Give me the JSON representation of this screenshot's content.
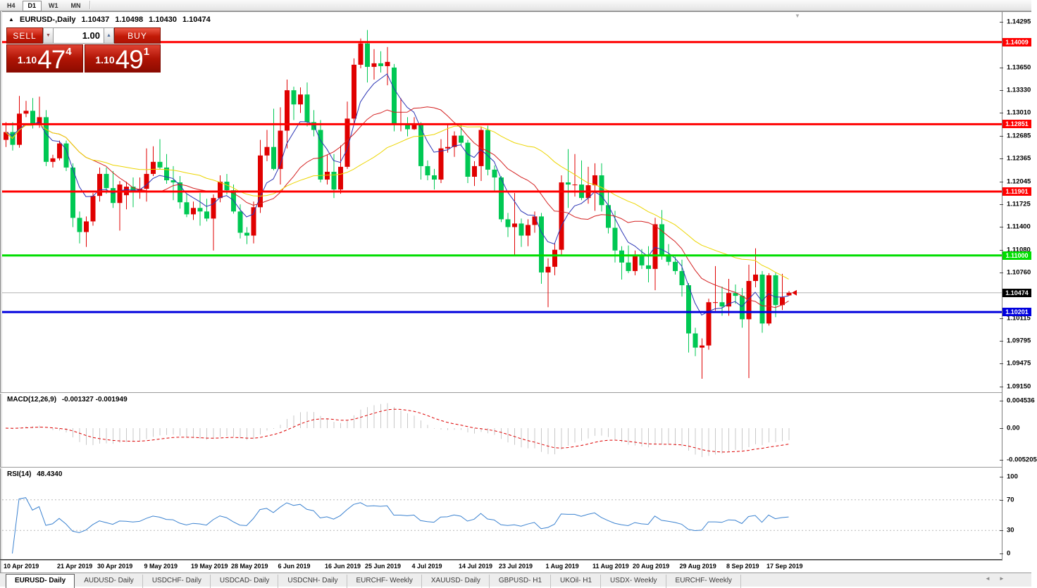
{
  "toolbar": {
    "timeframes": [
      "H4",
      "D1",
      "W1",
      "MN"
    ],
    "active": "D1"
  },
  "chart_header": {
    "collapse_icon": "▲",
    "symbol": "EURUSD-,Daily",
    "open": "1.10437",
    "high": "1.10498",
    "low": "1.10430",
    "close": "1.10474"
  },
  "trade_panel": {
    "sell_label": "SELL",
    "buy_label": "BUY",
    "volume": "1.00",
    "spin_down_icon": "▼",
    "spin_up_icon": "▲",
    "sell_price": {
      "small": "1.10",
      "big": "47",
      "sup": "4"
    },
    "buy_price": {
      "small": "1.10",
      "big": "49",
      "sup": "1"
    }
  },
  "indicator_labels": {
    "macd_name": "MACD(12,26,9)",
    "macd_values": "-0.001327 -0.001949",
    "rsi_name": "RSI(14)",
    "rsi_value": "48.4340"
  },
  "misc": {
    "scroll_marker_icon": "▼"
  },
  "footer": {
    "tabs": [
      {
        "label": "EURUSD- Daily",
        "active": true
      },
      {
        "label": "AUDUSD- Daily",
        "active": false
      },
      {
        "label": "USDCHF- Daily",
        "active": false
      },
      {
        "label": "USDCAD- Daily",
        "active": false
      },
      {
        "label": "USDCNH- Daily",
        "active": false
      },
      {
        "label": "EURCHF- Weekly",
        "active": false
      },
      {
        "label": "XAUUSD- Daily",
        "active": false
      },
      {
        "label": "GBPUSD- H1",
        "active": false
      },
      {
        "label": "UKOil- H1",
        "active": false
      },
      {
        "label": "USDX- Weekly",
        "active": false
      },
      {
        "label": "EURCHF- Weekly",
        "active": false
      }
    ],
    "scroll_left_icon": "◄",
    "scroll_right_icon": "►"
  },
  "chart_data": {
    "type": "candlestick",
    "symbol": "EURUSD-",
    "timeframe": "Daily",
    "title": "EURUSD-,Daily 1.10437 1.10498 1.10430 1.10474",
    "price_axis": {
      "top_price": 1.14295,
      "bottom_price": 1.0915,
      "ticks": [
        "1.14295",
        "1.13650",
        "1.13330",
        "1.13010",
        "1.12685",
        "1.12365",
        "1.12045",
        "1.11725",
        "1.11400",
        "1.11080",
        "1.10760",
        "1.10115",
        "1.09795",
        "1.09475",
        "1.09150"
      ]
    },
    "levels": [
      {
        "price": 1.14009,
        "label": "1.14009",
        "color": "#ff0000"
      },
      {
        "price": 1.12851,
        "label": "1.12851",
        "color": "#ff0000"
      },
      {
        "price": 1.11901,
        "label": "1.11901",
        "color": "#ff0000"
      },
      {
        "price": 1.11,
        "label": "1.11000",
        "color": "#00dd00"
      },
      {
        "price": 1.10201,
        "label": "1.10201",
        "color": "#0000dd"
      }
    ],
    "current_price": {
      "value": 1.10474,
      "label": "1.10474",
      "badge_color": "#000000",
      "line_color": "#b4b4b4",
      "marker_color": "#e00000"
    },
    "colors": {
      "up": "#e00000",
      "down": "#00c853",
      "ma_fast": "#2b35b5",
      "ma_mid": "#d42020",
      "ma_slow": "#ecd500"
    },
    "moving_averages": [
      {
        "type": "ema",
        "period": 6,
        "color_key": "ma_fast"
      },
      {
        "type": "sma",
        "period": 14,
        "color_key": "ma_mid"
      },
      {
        "type": "sma",
        "period": 30,
        "color_key": "ma_slow"
      }
    ],
    "date_ticks": [
      {
        "label": "10 Apr 2019",
        "index": 0
      },
      {
        "label": "21 Apr 2019",
        "index": 8
      },
      {
        "label": "30 Apr 2019",
        "index": 14
      },
      {
        "label": "9 May 2019",
        "index": 21
      },
      {
        "label": "19 May 2019",
        "index": 28
      },
      {
        "label": "28 May 2019",
        "index": 34
      },
      {
        "label": "6 Jun 2019",
        "index": 41
      },
      {
        "label": "16 Jun 2019",
        "index": 48
      },
      {
        "label": "25 Jun 2019",
        "index": 54
      },
      {
        "label": "4 Jul 2019",
        "index": 61
      },
      {
        "label": "14 Jul 2019",
        "index": 68
      },
      {
        "label": "23 Jul 2019",
        "index": 74
      },
      {
        "label": "1 Aug 2019",
        "index": 81
      },
      {
        "label": "11 Aug 2019",
        "index": 88
      },
      {
        "label": "20 Aug 2019",
        "index": 94
      },
      {
        "label": "29 Aug 2019",
        "index": 101
      },
      {
        "label": "8 Sep 2019",
        "index": 108
      },
      {
        "label": "17 Sep 2019",
        "index": 114
      }
    ],
    "candles": [
      [
        1.1263,
        1.1288,
        1.1253,
        1.1274
      ],
      [
        1.1274,
        1.1288,
        1.1248,
        1.1256
      ],
      [
        1.1256,
        1.1325,
        1.1252,
        1.13
      ],
      [
        1.13,
        1.1318,
        1.1295,
        1.1304
      ],
      [
        1.1304,
        1.1322,
        1.1279,
        1.1285
      ],
      [
        1.1285,
        1.1324,
        1.128,
        1.1295
      ],
      [
        1.1295,
        1.1305,
        1.1226,
        1.1232
      ],
      [
        1.1232,
        1.1242,
        1.1224,
        1.1237
      ],
      [
        1.1237,
        1.1262,
        1.1234,
        1.1258
      ],
      [
        1.1258,
        1.1262,
        1.1219,
        1.1224
      ],
      [
        1.1224,
        1.123,
        1.114,
        1.1153
      ],
      [
        1.1153,
        1.1162,
        1.1117,
        1.1133
      ],
      [
        1.1133,
        1.1155,
        1.1112,
        1.1148
      ],
      [
        1.1148,
        1.1188,
        1.1142,
        1.1184
      ],
      [
        1.1184,
        1.1224,
        1.1176,
        1.1215
      ],
      [
        1.1215,
        1.1224,
        1.1187,
        1.1195
      ],
      [
        1.1195,
        1.1219,
        1.1167,
        1.1174
      ],
      [
        1.1174,
        1.1205,
        1.1135,
        1.12
      ],
      [
        1.1185,
        1.1204,
        1.1165,
        1.1197
      ],
      [
        1.1197,
        1.121,
        1.1168,
        1.119
      ],
      [
        1.119,
        1.121,
        1.118,
        1.1194
      ],
      [
        1.1194,
        1.1251,
        1.1176,
        1.1215
      ],
      [
        1.1215,
        1.1254,
        1.1212,
        1.1232
      ],
      [
        1.1232,
        1.1264,
        1.1222,
        1.1224
      ],
      [
        1.1224,
        1.1243,
        1.1201,
        1.1206
      ],
      [
        1.1206,
        1.1226,
        1.1178,
        1.1203
      ],
      [
        1.1203,
        1.1212,
        1.1166,
        1.1175
      ],
      [
        1.1175,
        1.1187,
        1.1154,
        1.1158
      ],
      [
        1.1158,
        1.1176,
        1.115,
        1.1167
      ],
      [
        1.1167,
        1.1188,
        1.1142,
        1.1162
      ],
      [
        1.1162,
        1.118,
        1.1148,
        1.1152
      ],
      [
        1.1152,
        1.1186,
        1.1107,
        1.1181
      ],
      [
        1.1181,
        1.1213,
        1.1175,
        1.1204
      ],
      [
        1.1204,
        1.1215,
        1.1186,
        1.1192
      ],
      [
        1.1192,
        1.12,
        1.1159,
        1.1162
      ],
      [
        1.1162,
        1.1172,
        1.1124,
        1.1132
      ],
      [
        1.1132,
        1.114,
        1.1116,
        1.1128
      ],
      [
        1.1128,
        1.1176,
        1.1117,
        1.1168
      ],
      [
        1.1168,
        1.1263,
        1.116,
        1.1241
      ],
      [
        1.1241,
        1.1277,
        1.1233,
        1.1253
      ],
      [
        1.1253,
        1.1307,
        1.122,
        1.1222
      ],
      [
        1.1222,
        1.1309,
        1.12,
        1.1276
      ],
      [
        1.1276,
        1.1348,
        1.1251,
        1.1333
      ],
      [
        1.1333,
        1.1338,
        1.1291,
        1.1313
      ],
      [
        1.1313,
        1.1337,
        1.1301,
        1.1327
      ],
      [
        1.1327,
        1.1344,
        1.1282,
        1.1288
      ],
      [
        1.1288,
        1.1305,
        1.1268,
        1.1277
      ],
      [
        1.1277,
        1.1291,
        1.1203,
        1.1207
      ],
      [
        1.1207,
        1.1242,
        1.12,
        1.1218
      ],
      [
        1.1218,
        1.1243,
        1.1181,
        1.1193
      ],
      [
        1.1193,
        1.1255,
        1.1187,
        1.1225
      ],
      [
        1.1225,
        1.1317,
        1.1222,
        1.1293
      ],
      [
        1.1293,
        1.1378,
        1.1285,
        1.1369
      ],
      [
        1.1369,
        1.1406,
        1.1364,
        1.1399
      ],
      [
        1.1399,
        1.1418,
        1.1344,
        1.1366
      ],
      [
        1.1366,
        1.1391,
        1.1348,
        1.1371
      ],
      [
        1.1371,
        1.1388,
        1.1358,
        1.1367
      ],
      [
        1.1367,
        1.1394,
        1.134,
        1.1373
      ],
      [
        1.1365,
        1.137,
        1.1275,
        1.1285
      ],
      [
        1.1285,
        1.1322,
        1.1275,
        1.1285
      ],
      [
        1.1285,
        1.1295,
        1.1268,
        1.1278
      ],
      [
        1.1278,
        1.1295,
        1.1277,
        1.1285
      ],
      [
        1.1285,
        1.1288,
        1.1207,
        1.1226
      ],
      [
        1.1226,
        1.1234,
        1.1206,
        1.1213
      ],
      [
        1.1213,
        1.1222,
        1.1193,
        1.1207
      ],
      [
        1.1207,
        1.1264,
        1.1202,
        1.1251
      ],
      [
        1.1251,
        1.1286,
        1.1245,
        1.1253
      ],
      [
        1.1253,
        1.1275,
        1.1239,
        1.1269
      ],
      [
        1.1269,
        1.1285,
        1.1255,
        1.1259
      ],
      [
        1.1259,
        1.1263,
        1.1202,
        1.1211
      ],
      [
        1.1211,
        1.1233,
        1.1198,
        1.1226
      ],
      [
        1.1226,
        1.1282,
        1.1205,
        1.1277
      ],
      [
        1.1277,
        1.1283,
        1.1213,
        1.1221
      ],
      [
        1.1221,
        1.1227,
        1.1191,
        1.121
      ],
      [
        1.121,
        1.1212,
        1.1147,
        1.1151
      ],
      [
        1.1151,
        1.116,
        1.1126,
        1.114
      ],
      [
        1.114,
        1.1188,
        1.1101,
        1.1145
      ],
      [
        1.1145,
        1.1152,
        1.1112,
        1.1128
      ],
      [
        1.1128,
        1.1151,
        1.1113,
        1.1143
      ],
      [
        1.1143,
        1.1162,
        1.1132,
        1.1155
      ],
      [
        1.1155,
        1.116,
        1.106,
        1.1076
      ],
      [
        1.1076,
        1.1096,
        1.1027,
        1.1084
      ],
      [
        1.1084,
        1.1117,
        1.1072,
        1.1108
      ],
      [
        1.1108,
        1.1213,
        1.1101,
        1.1203
      ],
      [
        1.1203,
        1.125,
        1.1167,
        1.12
      ],
      [
        1.12,
        1.1243,
        1.1183,
        1.12
      ],
      [
        1.12,
        1.1234,
        1.1178,
        1.1181
      ],
      [
        1.1181,
        1.1225,
        1.1173,
        1.1199
      ],
      [
        1.1199,
        1.123,
        1.1163,
        1.1213
      ],
      [
        1.1213,
        1.123,
        1.1162,
        1.1171
      ],
      [
        1.1171,
        1.1192,
        1.1131,
        1.1139
      ],
      [
        1.1139,
        1.1163,
        1.109,
        1.1107
      ],
      [
        1.1107,
        1.1113,
        1.1066,
        1.109
      ],
      [
        1.109,
        1.1114,
        1.1075,
        1.1078
      ],
      [
        1.1078,
        1.1107,
        1.1072,
        1.11
      ],
      [
        1.11,
        1.1109,
        1.1081,
        1.1086
      ],
      [
        1.1086,
        1.1113,
        1.1062,
        1.1081
      ],
      [
        1.1081,
        1.1153,
        1.1051,
        1.1144
      ],
      [
        1.1144,
        1.1164,
        1.1094,
        1.1101
      ],
      [
        1.1101,
        1.1116,
        1.1086,
        1.1091
      ],
      [
        1.1091,
        1.1098,
        1.1073,
        1.1078
      ],
      [
        1.1078,
        1.1094,
        1.1042,
        1.1058
      ],
      [
        1.1058,
        1.1061,
        1.0963,
        1.099
      ],
      [
        1.099,
        1.0998,
        1.0958,
        1.097
      ],
      [
        1.097,
        1.0983,
        1.0926,
        1.0973
      ],
      [
        1.0973,
        1.1039,
        1.0967,
        1.1034
      ],
      [
        1.1034,
        1.1085,
        1.1022,
        1.1034
      ],
      [
        1.1034,
        1.1056,
        1.1015,
        1.1028
      ],
      [
        1.1028,
        1.1067,
        1.1015,
        1.1047
      ],
      [
        1.1047,
        1.1059,
        1.1032,
        1.1043
      ],
      [
        1.1043,
        1.1054,
        1.0998,
        1.101
      ],
      [
        1.101,
        1.1087,
        1.0927,
        1.1064
      ],
      [
        1.1064,
        1.111,
        1.1055,
        1.1073
      ],
      [
        1.1073,
        1.1078,
        1.0991,
        1.1004
      ],
      [
        1.1004,
        1.1075,
        1.1001,
        1.1072
      ],
      [
        1.1072,
        1.1076,
        1.1013,
        1.103
      ],
      [
        1.103,
        1.1074,
        1.1023,
        1.1041
      ],
      [
        1.10437,
        1.10498,
        1.1043,
        1.10474
      ]
    ],
    "macd": {
      "fast": 12,
      "slow": 26,
      "signal": 9,
      "axis_ticks": [
        {
          "label": "0.004536",
          "value": 0.004536
        },
        {
          "label": "0.00",
          "value": 0
        },
        {
          "label": "-0.005205",
          "value": -0.005205
        }
      ],
      "histogram_color": "#c8c8c8",
      "signal_color": "#dd0000"
    },
    "rsi": {
      "period": 14,
      "axis_ticks": [
        {
          "label": "100",
          "value": 100
        },
        {
          "label": "70",
          "value": 70
        },
        {
          "label": "30",
          "value": 30
        },
        {
          "label": "0",
          "value": 0
        }
      ],
      "levels": [
        70,
        30
      ],
      "line_color": "#3b82d0",
      "level_color": "#b8b8b8"
    }
  }
}
